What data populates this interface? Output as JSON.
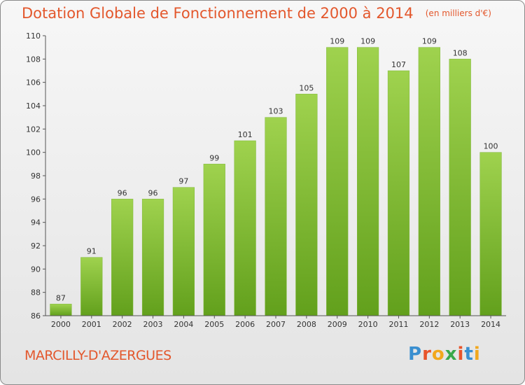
{
  "header": {
    "title": "Dotation Globale de Fonctionnement de 2000 à 2014",
    "subtitle": "(en milliers d'€)"
  },
  "footer": {
    "commune": "MARCILLY-D'AZERGUES",
    "logo": "Proxiti",
    "logo_colors": [
      "#3a8fd0",
      "#e8542a",
      "#f2a81d",
      "#3aa84a",
      "#e8542a",
      "#3a8fd0",
      "#f2a81d"
    ]
  },
  "chart_data": {
    "type": "bar",
    "title": "Dotation Globale de Fonctionnement de 2000 à 2014",
    "subtitle": "(en milliers d'€)",
    "categories": [
      "2000",
      "2001",
      "2002",
      "2003",
      "2004",
      "2005",
      "2006",
      "2007",
      "2008",
      "2009",
      "2010",
      "2011",
      "2012",
      "2013",
      "2014"
    ],
    "values": [
      87,
      91,
      96,
      96,
      97,
      99,
      101,
      103,
      105,
      109,
      109,
      107,
      109,
      108,
      100
    ],
    "ylim": [
      86,
      110
    ],
    "yticks": [
      86,
      88,
      90,
      92,
      94,
      96,
      98,
      100,
      102,
      104,
      106,
      108,
      110
    ],
    "grid": false,
    "bar_color": "#8cc43c",
    "bar_color_dark": "#62a01c"
  }
}
